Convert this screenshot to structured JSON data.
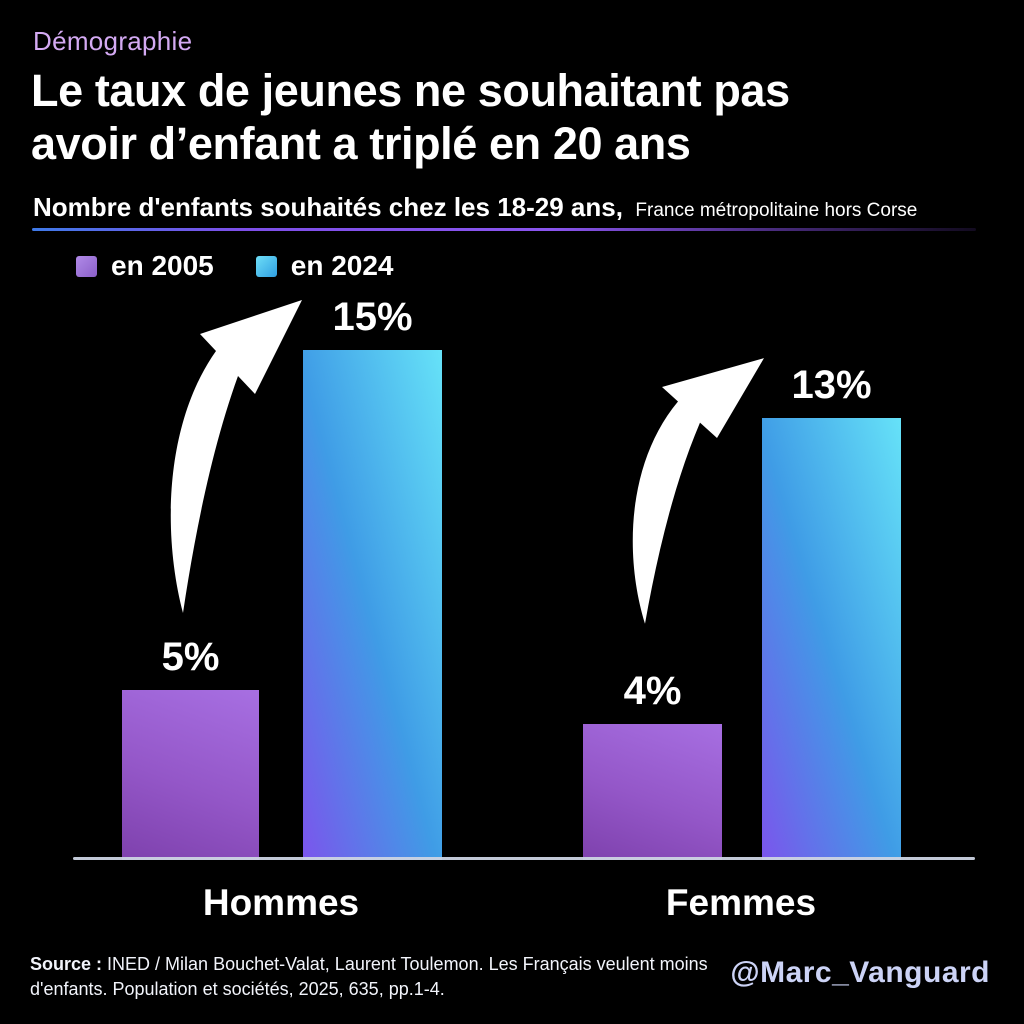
{
  "header": {
    "kicker": "Démographie",
    "title_line1": "Le taux de jeunes ne souhaitant pas",
    "title_line2": "avoir d’enfant a triplé en 20 ans",
    "subtitle_bold": "Nombre d'enfants souhaités chez les 18-29 ans,",
    "subtitle_note": "France métropolitaine hors Corse"
  },
  "chart_data": {
    "type": "bar",
    "title": "Nombre d'enfants souhaités chez les 18-29 ans",
    "categories": [
      "Hommes",
      "Femmes"
    ],
    "series": [
      {
        "name": "en 2005",
        "values": [
          5,
          4
        ],
        "color": "#9d6fd8"
      },
      {
        "name": "en 2024",
        "values": [
          15,
          13
        ],
        "color": "#45c2ee"
      }
    ],
    "value_labels": [
      [
        "5%",
        "4%"
      ],
      [
        "15%",
        "13%"
      ]
    ],
    "unit": "%",
    "ylim": [
      0,
      16.5
    ],
    "grid": false,
    "legend_position": "top-left",
    "annotations": [
      "tripling-arrow-hommes",
      "tripling-arrow-femmes"
    ]
  },
  "footer": {
    "source_label": "Source :",
    "source_text": "INED / Milan Bouchet-Valat, Laurent Toulemon. Les Français veulent moins d'enfants. Population et sociétés, 2025, 635, pp.1-4.",
    "handle": "@Marc_Vanguard"
  },
  "colors": {
    "background_purple": "#8b2ac5",
    "background_navy": "#0d2b6e",
    "bar_2005": "#9d6fd8",
    "bar_2024": "#45c2ee",
    "accent_text": "#d4aaf3",
    "axis": "#ccd4e3",
    "arrow": "#ffffff"
  }
}
